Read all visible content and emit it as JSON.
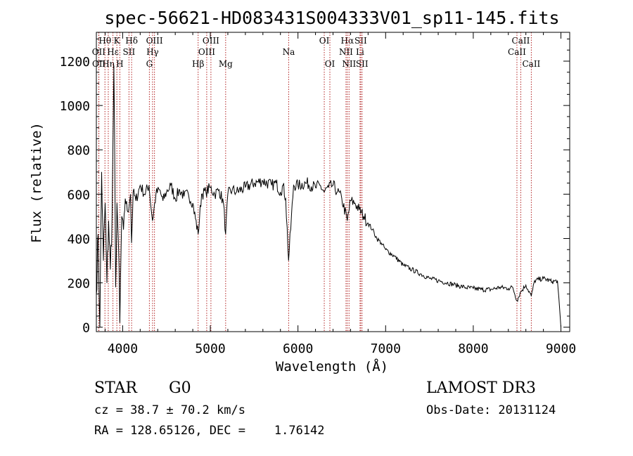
{
  "chart_data": {
    "type": "line",
    "title": "spec-56621-HD083431S004333V01_sp11-145.fits",
    "xlabel": "Wavelength (Å)",
    "ylabel": "Flux (relative)",
    "xlim": [
      3700,
      9100
    ],
    "ylim": [
      -20,
      1330
    ],
    "xticks": [
      4000,
      5000,
      6000,
      7000,
      8000,
      9000
    ],
    "yticks": [
      0,
      200,
      400,
      600,
      800,
      1000,
      1200
    ],
    "line_color": "#000000",
    "marker_color": "#b22222",
    "series": [
      {
        "name": "spectrum",
        "x": [
          3700,
          3720,
          3740,
          3760,
          3780,
          3800,
          3820,
          3840,
          3860,
          3880,
          3900,
          3920,
          3935,
          3950,
          3968,
          3990,
          4010,
          4030,
          4060,
          4090,
          4101,
          4120,
          4150,
          4200,
          4250,
          4300,
          4340,
          4380,
          4420,
          4460,
          4500,
          4550,
          4600,
          4650,
          4700,
          4750,
          4800,
          4861,
          4900,
          4950,
          5000,
          5050,
          5100,
          5150,
          5175,
          5200,
          5250,
          5300,
          5400,
          5500,
          5600,
          5700,
          5750,
          5800,
          5830,
          5860,
          5893,
          5950,
          6000,
          6100,
          6200,
          6250,
          6300,
          6350,
          6400,
          6450,
          6500,
          6563,
          6600,
          6650,
          6700,
          6750,
          6800,
          6850,
          6900,
          6950,
          7000,
          7100,
          7200,
          7300,
          7400,
          7500,
          7600,
          7700,
          7800,
          7900,
          8000,
          8100,
          8200,
          8300,
          8400,
          8450,
          8498,
          8542,
          8600,
          8662,
          8700,
          8800,
          8900,
          8960,
          9000
        ],
        "y": [
          150,
          420,
          0,
          700,
          300,
          560,
          200,
          480,
          260,
          510,
          1180,
          180,
          560,
          400,
          20,
          500,
          440,
          580,
          520,
          600,
          380,
          610,
          570,
          640,
          600,
          640,
          480,
          600,
          620,
          570,
          610,
          640,
          580,
          620,
          590,
          600,
          560,
          420,
          600,
          610,
          630,
          600,
          620,
          560,
          420,
          600,
          620,
          610,
          630,
          650,
          660,
          640,
          650,
          610,
          640,
          580,
          300,
          640,
          640,
          650,
          630,
          640,
          610,
          630,
          640,
          610,
          580,
          480,
          570,
          560,
          530,
          500,
          470,
          440,
          400,
          380,
          350,
          320,
          280,
          260,
          240,
          220,
          210,
          200,
          190,
          180,
          175,
          170,
          170,
          180,
          175,
          180,
          120,
          160,
          190,
          140,
          210,
          220,
          205,
          210,
          0
        ]
      }
    ],
    "line_markers": [
      {
        "name": "Hθ",
        "x": 3798,
        "row": 1
      },
      {
        "name": "OII",
        "x": 3727,
        "row": 2
      },
      {
        "name": "OII",
        "x": 3729,
        "row": 3
      },
      {
        "name": "Hη",
        "x": 3836,
        "row": 3
      },
      {
        "name": "K",
        "x": 3934,
        "row": 1
      },
      {
        "name": "Hε",
        "x": 3889,
        "row": 2
      },
      {
        "name": "H",
        "x": 3968,
        "row": 3
      },
      {
        "name": "SII",
        "x": 4072,
        "row": 2
      },
      {
        "name": "Hδ",
        "x": 4102,
        "row": 1
      },
      {
        "name": "OIII",
        "x": 4363,
        "row": 1
      },
      {
        "name": "Hγ",
        "x": 4341,
        "row": 2
      },
      {
        "name": "G",
        "x": 4305,
        "row": 3
      },
      {
        "name": "Hβ",
        "x": 4861,
        "row": 3
      },
      {
        "name": "OIII",
        "x": 5007,
        "row": 1
      },
      {
        "name": "OIII",
        "x": 4959,
        "row": 2
      },
      {
        "name": "Mg",
        "x": 5175,
        "row": 3
      },
      {
        "name": "Na",
        "x": 5894,
        "row": 2
      },
      {
        "name": "OI",
        "x": 6300,
        "row": 1
      },
      {
        "name": "OI",
        "x": 6364,
        "row": 3
      },
      {
        "name": "Hα",
        "x": 6563,
        "row": 1
      },
      {
        "name": "NII",
        "x": 6548,
        "row": 2
      },
      {
        "name": "NII",
        "x": 6583,
        "row": 3
      },
      {
        "name": "SII",
        "x": 6716,
        "row": 1
      },
      {
        "name": "Li",
        "x": 6708,
        "row": 2
      },
      {
        "name": "SII",
        "x": 6731,
        "row": 3
      },
      {
        "name": "CaII",
        "x": 8542,
        "row": 1
      },
      {
        "name": "CaII",
        "x": 8498,
        "row": 2
      },
      {
        "name": "CaII",
        "x": 8662,
        "row": 3
      }
    ]
  },
  "info": {
    "object_class": "STAR",
    "subclass": "G0",
    "survey": "LAMOST DR3",
    "redshift": "cz = 38.7 ± 70.2 km/s",
    "obs_date": "Obs-Date: 20131124",
    "coords": "RA = 128.65126, DEC =    1.76142"
  }
}
